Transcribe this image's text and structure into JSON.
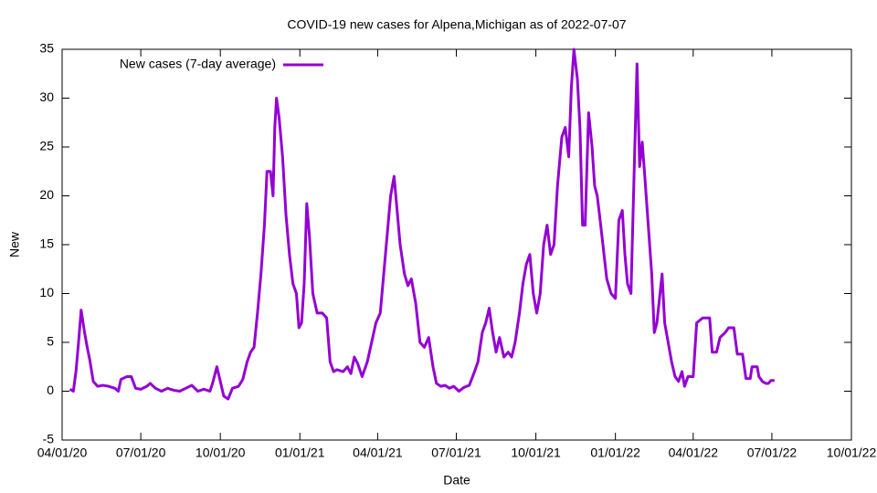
{
  "chart_data": {
    "type": "line",
    "title": "COVID-19 new cases for Alpena,Michigan as of 2022-07-07",
    "x_label": "Date",
    "y_label": "New",
    "legend": "top-left",
    "xlim": [
      "2020-04-01",
      "2022-10-01"
    ],
    "xticks": [
      {
        "value": "2020-04-01",
        "label": "04/01/20"
      },
      {
        "value": "2020-07-01",
        "label": "07/01/20"
      },
      {
        "value": "2020-10-01",
        "label": "10/01/20"
      },
      {
        "value": "2021-01-01",
        "label": "01/01/21"
      },
      {
        "value": "2021-04-01",
        "label": "04/01/21"
      },
      {
        "value": "2021-07-01",
        "label": "07/01/21"
      },
      {
        "value": "2021-10-01",
        "label": "10/01/21"
      },
      {
        "value": "2022-01-01",
        "label": "01/01/22"
      },
      {
        "value": "2022-04-01",
        "label": "04/01/22"
      },
      {
        "value": "2022-07-01",
        "label": "07/01/22"
      },
      {
        "value": "2022-10-01",
        "label": "10/01/22"
      }
    ],
    "ylim": [
      -5,
      35
    ],
    "yticks": [
      -5,
      0,
      5,
      10,
      15,
      20,
      25,
      30,
      35
    ],
    "x": [
      "2020-04-10",
      "2020-04-14",
      "2020-04-17",
      "2020-04-20",
      "2020-04-23",
      "2020-04-27",
      "2020-04-30",
      "2020-05-03",
      "2020-05-07",
      "2020-05-12",
      "2020-05-18",
      "2020-05-25",
      "2020-06-01",
      "2020-06-05",
      "2020-06-08",
      "2020-06-15",
      "2020-06-20",
      "2020-06-25",
      "2020-07-01",
      "2020-07-08",
      "2020-07-12",
      "2020-07-18",
      "2020-07-25",
      "2020-08-01",
      "2020-08-08",
      "2020-08-15",
      "2020-08-22",
      "2020-08-29",
      "2020-09-05",
      "2020-09-12",
      "2020-09-19",
      "2020-09-22",
      "2020-09-27",
      "2020-10-01",
      "2020-10-05",
      "2020-10-10",
      "2020-10-15",
      "2020-10-22",
      "2020-10-27",
      "2020-11-01",
      "2020-11-05",
      "2020-11-09",
      "2020-11-13",
      "2020-11-17",
      "2020-11-21",
      "2020-11-24",
      "2020-11-28",
      "2020-12-01",
      "2020-12-03",
      "2020-12-05",
      "2020-12-08",
      "2020-12-12",
      "2020-12-16",
      "2020-12-20",
      "2020-12-24",
      "2020-12-28",
      "2020-12-31",
      "2021-01-03",
      "2021-01-06",
      "2021-01-09",
      "2021-01-12",
      "2021-01-16",
      "2021-01-21",
      "2021-01-27",
      "2021-02-01",
      "2021-02-05",
      "2021-02-09",
      "2021-02-13",
      "2021-02-20",
      "2021-02-25",
      "2021-03-01",
      "2021-03-05",
      "2021-03-09",
      "2021-03-14",
      "2021-03-20",
      "2021-03-25",
      "2021-03-30",
      "2021-04-04",
      "2021-04-08",
      "2021-04-12",
      "2021-04-16",
      "2021-04-20",
      "2021-04-23",
      "2021-04-27",
      "2021-05-02",
      "2021-05-06",
      "2021-05-10",
      "2021-05-15",
      "2021-05-20",
      "2021-05-25",
      "2021-05-30",
      "2021-06-04",
      "2021-06-08",
      "2021-06-13",
      "2021-06-18",
      "2021-06-23",
      "2021-06-28",
      "2021-07-04",
      "2021-07-10",
      "2021-07-16",
      "2021-07-22",
      "2021-07-26",
      "2021-07-31",
      "2021-08-04",
      "2021-08-08",
      "2021-08-12",
      "2021-08-16",
      "2021-08-20",
      "2021-08-25",
      "2021-08-30",
      "2021-09-03",
      "2021-09-07",
      "2021-09-12",
      "2021-09-16",
      "2021-09-20",
      "2021-09-24",
      "2021-09-28",
      "2021-10-02",
      "2021-10-06",
      "2021-10-10",
      "2021-10-14",
      "2021-10-18",
      "2021-10-22",
      "2021-10-26",
      "2021-10-31",
      "2021-11-04",
      "2021-11-08",
      "2021-11-11",
      "2021-11-14",
      "2021-11-18",
      "2021-11-21",
      "2021-11-24",
      "2021-11-27",
      "2021-12-01",
      "2021-12-05",
      "2021-12-08",
      "2021-12-11",
      "2021-12-15",
      "2021-12-22",
      "2021-12-27",
      "2022-01-01",
      "2022-01-05",
      "2022-01-09",
      "2022-01-12",
      "2022-01-15",
      "2022-01-19",
      "2022-01-23",
      "2022-01-26",
      "2022-01-29",
      "2022-02-01",
      "2022-02-04",
      "2022-02-08",
      "2022-02-12",
      "2022-02-15",
      "2022-02-18",
      "2022-02-24",
      "2022-02-27",
      "2022-03-03",
      "2022-03-07",
      "2022-03-11",
      "2022-03-15",
      "2022-03-19",
      "2022-03-22",
      "2022-03-26",
      "2022-04-01",
      "2022-04-05",
      "2022-04-12",
      "2022-04-20",
      "2022-04-23",
      "2022-04-28",
      "2022-05-02",
      "2022-05-08",
      "2022-05-12",
      "2022-05-18",
      "2022-05-22",
      "2022-05-28",
      "2022-06-01",
      "2022-06-06",
      "2022-06-08",
      "2022-06-14",
      "2022-06-16",
      "2022-06-20",
      "2022-06-24",
      "2022-06-27",
      "2022-06-30",
      "2022-07-04"
    ],
    "series": [
      {
        "name": "New cases (7-day average)",
        "color": "#9400d3",
        "values": [
          0.2,
          0,
          2,
          5,
          8.3,
          6,
          4.5,
          3.2,
          1,
          0.5,
          0.6,
          0.5,
          0.3,
          0,
          1.2,
          1.5,
          1.5,
          0.3,
          0.2,
          0.5,
          0.8,
          0.3,
          0,
          0.3,
          0.1,
          0,
          0.3,
          0.6,
          0,
          0.2,
          0,
          0.8,
          2.5,
          1,
          -0.5,
          -0.8,
          0.3,
          0.5,
          1.2,
          3,
          4,
          4.5,
          8,
          12,
          17,
          22.5,
          22.5,
          20,
          27,
          30,
          28,
          24,
          18,
          14,
          11,
          10,
          6.5,
          7,
          11,
          19.2,
          16,
          10,
          8,
          8,
          7.5,
          3,
          2,
          2.2,
          2,
          2.5,
          1.8,
          3.5,
          2.8,
          1.5,
          3,
          5,
          7,
          8,
          12,
          16,
          20,
          22,
          19,
          15,
          12,
          10.8,
          11.5,
          9,
          5,
          4.5,
          5.5,
          2.5,
          0.8,
          0.5,
          0.6,
          0.3,
          0.5,
          0,
          0.4,
          0.6,
          2,
          3,
          6,
          7,
          8.5,
          6,
          4,
          5.5,
          3.5,
          4,
          3.5,
          5,
          8,
          11,
          13,
          14,
          10,
          8,
          10,
          15,
          17,
          14,
          15,
          21,
          26,
          27,
          24,
          31,
          35,
          32,
          27,
          17,
          17,
          28.5,
          25,
          21,
          20,
          17,
          11.5,
          10,
          9.5,
          17.5,
          18.5,
          14,
          11,
          10,
          23.5,
          33.5,
          23,
          25.5,
          22,
          17,
          12,
          6,
          7,
          12,
          7,
          5,
          3,
          1.5,
          1,
          2,
          0.5,
          1.5,
          1.5,
          7,
          7.5,
          7.5,
          4,
          4,
          5.5,
          6,
          6.5,
          6.5,
          3.8,
          3.8,
          1.3,
          1.3,
          2.5,
          2.5,
          1.5,
          1,
          0.8,
          0.8,
          1.1,
          1.1
        ]
      }
    ]
  }
}
